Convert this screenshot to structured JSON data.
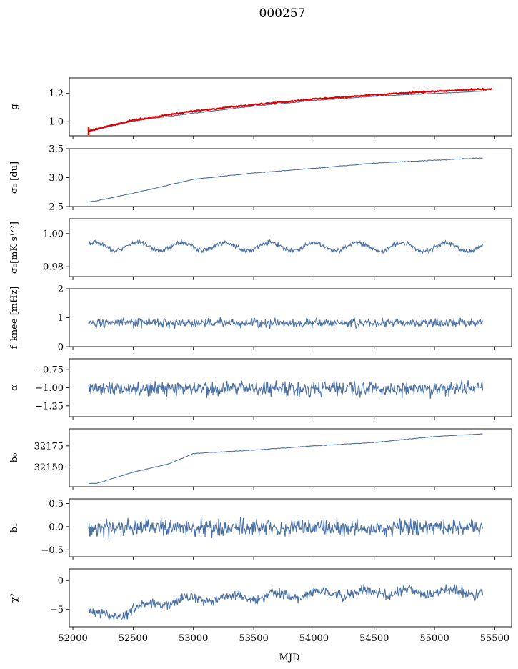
{
  "figure_title": "000257",
  "x_axis": {
    "label": "MJD",
    "lim": [
      51970,
      55640
    ],
    "ticks": [
      52000,
      52500,
      53000,
      53500,
      54000,
      54500,
      55000,
      55500
    ],
    "tick_labels": [
      "52000",
      "52500",
      "53000",
      "53500",
      "54000",
      "54500",
      "55000",
      "55500"
    ]
  },
  "series_color": "#4c72a4",
  "fit_color": "#e00000",
  "chart_data": [
    {
      "type": "line",
      "id": "g",
      "ylabel": "g",
      "ylim": [
        0.9,
        1.31
      ],
      "yticks": [
        1.0,
        1.2
      ],
      "ytick_labels": [
        "1.0",
        "1.2"
      ],
      "x_range": [
        52130,
        55400
      ],
      "series": [
        {
          "kind": "blue",
          "shape": "curve",
          "knots": [
            [
              52130,
              0.93
            ],
            [
              52300,
              0.965
            ],
            [
              52500,
              1.005
            ],
            [
              53000,
              1.06
            ],
            [
              53500,
              1.11
            ],
            [
              54000,
              1.15
            ],
            [
              54500,
              1.18
            ],
            [
              55000,
              1.2
            ],
            [
              55400,
              1.215
            ]
          ],
          "noise": 0.002
        },
        {
          "kind": "red",
          "shape": "curve",
          "knots": [
            [
              52130,
              0.935
            ],
            [
              52300,
              0.97
            ],
            [
              52500,
              1.01
            ],
            [
              53000,
              1.075
            ],
            [
              53500,
              1.12
            ],
            [
              54000,
              1.16
            ],
            [
              54500,
              1.19
            ],
            [
              55000,
              1.215
            ],
            [
              55400,
              1.23
            ]
          ],
          "noise": 0.004,
          "extend_to": 55480
        }
      ]
    },
    {
      "type": "line",
      "id": "sigma0_du",
      "ylabel": "σ₀ [du]",
      "ylim": [
        2.5,
        3.5
      ],
      "yticks": [
        2.5,
        3.0,
        3.5
      ],
      "ytick_labels": [
        "2.5",
        "3.0",
        "3.5"
      ],
      "x_range": [
        52130,
        55400
      ],
      "series": [
        {
          "kind": "blue",
          "shape": "curve",
          "knots": [
            [
              52130,
              2.58
            ],
            [
              52200,
              2.6
            ],
            [
              52500,
              2.73
            ],
            [
              53000,
              2.97
            ],
            [
              53500,
              3.08
            ],
            [
              54000,
              3.16
            ],
            [
              54500,
              3.25
            ],
            [
              55000,
              3.3
            ],
            [
              55400,
              3.34
            ]
          ],
          "noise": 0.005
        }
      ]
    },
    {
      "type": "line",
      "id": "sigma0_mks",
      "ylabel": "σ₀[mK s¹ᐟ²]",
      "ylim": [
        0.974,
        1.009
      ],
      "yticks": [
        0.98,
        1.0
      ],
      "ytick_labels": [
        "0.98",
        "1.00"
      ],
      "x_range": [
        52130,
        55400
      ],
      "series": [
        {
          "kind": "blue",
          "shape": "wave",
          "mean": 0.9925,
          "slope": -0.0008,
          "amp": 0.0025,
          "period": 365,
          "noise": 0.0012
        }
      ]
    },
    {
      "type": "line",
      "id": "fknee",
      "ylabel": "f_knee [mHz]",
      "ylim": [
        0,
        2
      ],
      "yticks": [
        0,
        1,
        2
      ],
      "ytick_labels": [
        "0",
        "1",
        "2"
      ],
      "x_range": [
        52130,
        55400
      ],
      "series": [
        {
          "kind": "blue",
          "shape": "noise",
          "mean": 0.82,
          "noise": 0.14
        }
      ]
    },
    {
      "type": "line",
      "id": "alpha",
      "ylabel": "α",
      "ylim": [
        -1.4,
        -0.6
      ],
      "yticks": [
        -1.25,
        -1.0,
        -0.75
      ],
      "ytick_labels": [
        "−1.25",
        "−1.00",
        "−0.75"
      ],
      "x_range": [
        52130,
        55400
      ],
      "series": [
        {
          "kind": "blue",
          "shape": "noise",
          "mean": -1.01,
          "noise": 0.09
        }
      ]
    },
    {
      "type": "line",
      "id": "b0",
      "ylabel": "b₀",
      "ylim": [
        32127,
        32195
      ],
      "yticks": [
        32150,
        32175
      ],
      "ytick_labels": [
        "32150",
        "32175"
      ],
      "x_range": [
        52130,
        55400
      ],
      "series": [
        {
          "kind": "blue",
          "shape": "curve",
          "knots": [
            [
              52130,
              32131
            ],
            [
              52200,
              32131
            ],
            [
              52500,
              32144
            ],
            [
              52800,
              32154
            ],
            [
              53000,
              32166
            ],
            [
              53500,
              32170
            ],
            [
              54000,
              32175
            ],
            [
              54500,
              32179
            ],
            [
              55000,
              32186
            ],
            [
              55400,
              32189
            ]
          ],
          "noise": 0.3
        }
      ]
    },
    {
      "type": "line",
      "id": "b1",
      "ylabel": "b₁",
      "ylim": [
        -0.65,
        0.6
      ],
      "yticks": [
        -0.5,
        0.0,
        0.5
      ],
      "ytick_labels": [
        "−0.5",
        "0.0",
        "0.5"
      ],
      "x_range": [
        52130,
        55400
      ],
      "series": [
        {
          "kind": "blue",
          "shape": "noise",
          "mean": -0.02,
          "noise": 0.15
        }
      ]
    },
    {
      "type": "line",
      "id": "chi2",
      "ylabel": "χ²",
      "ylim": [
        -8,
        2
      ],
      "yticks": [
        -5,
        0
      ],
      "ytick_labels": [
        "−5",
        "0"
      ],
      "x_range": [
        52130,
        55400
      ],
      "series": [
        {
          "kind": "blue",
          "shape": "chi",
          "knots": [
            [
              52130,
              -5.2
            ],
            [
              52300,
              -6.3
            ],
            [
              52600,
              -4.3
            ],
            [
              53000,
              -3.2
            ],
            [
              53500,
              -2.8
            ],
            [
              54000,
              -2.3
            ],
            [
              54500,
              -2.1
            ],
            [
              55000,
              -2.0
            ],
            [
              55400,
              -1.9
            ]
          ],
          "noise": 0.75
        }
      ]
    }
  ]
}
